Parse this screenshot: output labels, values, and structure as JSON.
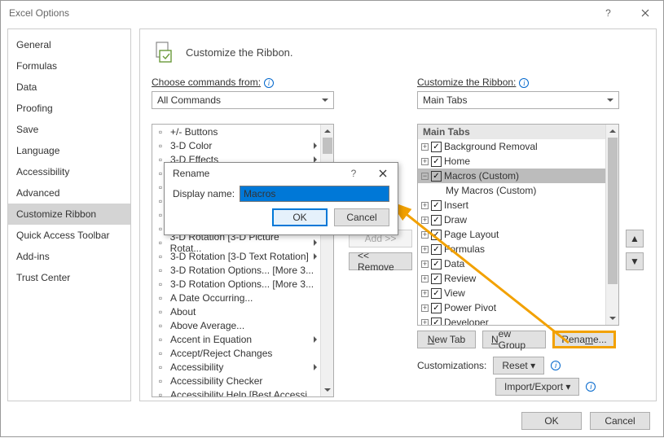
{
  "window": {
    "title": "Excel Options"
  },
  "sidebar": {
    "items": [
      "General",
      "Formulas",
      "Data",
      "Proofing",
      "Save",
      "Language",
      "Accessibility",
      "Advanced",
      "Customize Ribbon",
      "Quick Access Toolbar",
      "Add-ins",
      "Trust Center"
    ],
    "selected_index": 8
  },
  "header": {
    "title": "Customize the Ribbon."
  },
  "left": {
    "label": "Choose commands from:",
    "dropdown": "All Commands",
    "commands": [
      {
        "label": "+/- Buttons"
      },
      {
        "label": "3-D Color",
        "sub": true
      },
      {
        "label": "3-D Effects",
        "sub": true
      },
      {
        "label": ""
      },
      {
        "label": ""
      },
      {
        "label": ""
      },
      {
        "label": ""
      },
      {
        "label": ""
      },
      {
        "label": "3-D Rotation [3-D Picture Rotat...",
        "sub": true
      },
      {
        "label": "3-D Rotation [3-D Text Rotation]",
        "sub": true
      },
      {
        "label": "3-D Rotation Options... [More 3..."
      },
      {
        "label": "3-D Rotation Options... [More 3..."
      },
      {
        "label": "A Date Occurring..."
      },
      {
        "label": "About"
      },
      {
        "label": "Above Average..."
      },
      {
        "label": "Accent in Equation",
        "sub": true
      },
      {
        "label": "Accept/Reject Changes"
      },
      {
        "label": "Accessibility",
        "sub": true
      },
      {
        "label": "Accessibility Checker"
      },
      {
        "label": "Accessibility Help [Best Accessi..."
      }
    ]
  },
  "right": {
    "label": "Customize the Ribbon:",
    "dropdown": "Main Tabs",
    "header": "Main Tabs",
    "tabs": [
      {
        "label": "Background Removal",
        "chk": true
      },
      {
        "label": "Home",
        "chk": true
      },
      {
        "label": "Macros (Custom)",
        "chk": true,
        "sel": true
      },
      {
        "label": "My Macros (Custom)",
        "child": true
      },
      {
        "label": "Insert",
        "chk": true
      },
      {
        "label": "Draw",
        "chk": true
      },
      {
        "label": "Page Layout",
        "chk": true
      },
      {
        "label": "Formulas",
        "chk": true
      },
      {
        "label": "Data",
        "chk": true
      },
      {
        "label": "Review",
        "chk": true
      },
      {
        "label": "View",
        "chk": true
      },
      {
        "label": "Power Pivot",
        "chk": true
      },
      {
        "label": "Developer",
        "chk": true
      }
    ],
    "buttons": {
      "newtab": "New Tab",
      "newgroup": "New Group",
      "rename": "Rename..."
    },
    "customizations_label": "Customizations:",
    "reset": "Reset",
    "import": "Import/Export"
  },
  "mid": {
    "add": "Add >>",
    "remove": "<< Remove"
  },
  "footer": {
    "ok": "OK",
    "cancel": "Cancel"
  },
  "dialog": {
    "title": "Rename",
    "label": "Display name:",
    "value": "Macros",
    "ok": "OK",
    "cancel": "Cancel"
  },
  "colors": {
    "accent": "#f2a100"
  }
}
